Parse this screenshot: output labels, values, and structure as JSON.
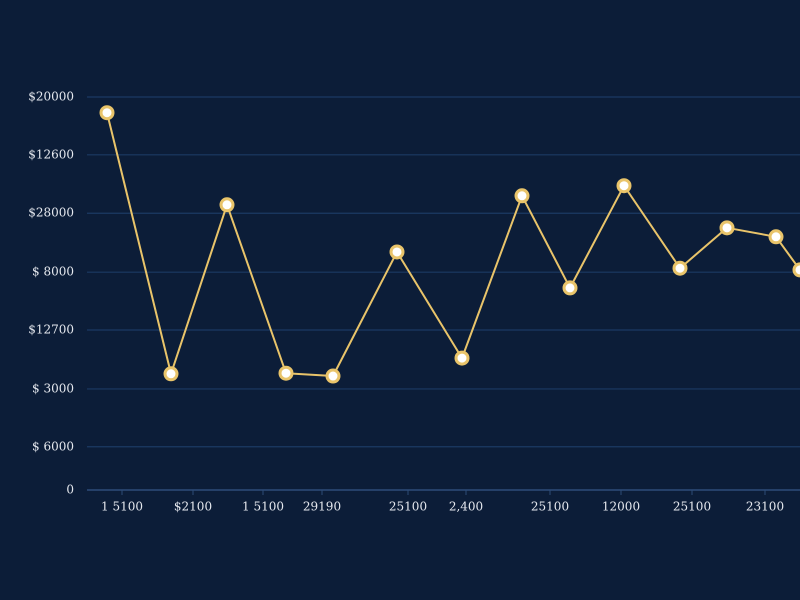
{
  "chart_data": {
    "type": "line",
    "x": [
      20,
      84,
      140,
      199,
      246,
      310,
      375,
      435,
      483,
      537,
      593,
      640,
      689,
      713
    ],
    "series": [
      {
        "color": "#e9c46a",
        "values": [
          6720,
          2070,
          5080,
          2080,
          2030,
          4240,
          2350,
          5240,
          3600,
          5420,
          3950,
          4670,
          4510,
          3920
        ]
      }
    ],
    "xlim": [
      0,
      713
    ],
    "xticks": [
      {
        "value": 35,
        "label": "1 5100"
      },
      {
        "value": 106,
        "label": "$2100"
      },
      {
        "value": 176,
        "label": "1 5100"
      },
      {
        "value": 235,
        "label": "29190"
      },
      {
        "value": 321,
        "label": "25100"
      },
      {
        "value": 379,
        "label": "2,400"
      },
      {
        "value": 463,
        "label": "25100"
      },
      {
        "value": 534,
        "label": "12000"
      },
      {
        "value": 605,
        "label": "25100"
      },
      {
        "value": 678,
        "label": "23100"
      }
    ],
    "ylim": [
      0,
      7000
    ],
    "yticks": [
      0,
      {
        "value": 770,
        "label": "$ 6000"
      },
      {
        "value": 1800,
        "label": "$ 3000"
      },
      {
        "value": 2850,
        "label": "$12700"
      },
      {
        "value": 3880,
        "label": "$ 8000"
      },
      {
        "value": 4930,
        "label": "$28000"
      },
      {
        "value": 5970,
        "label": "$12600"
      },
      {
        "value": 7000,
        "label": "$20000"
      }
    ],
    "grid": true
  }
}
